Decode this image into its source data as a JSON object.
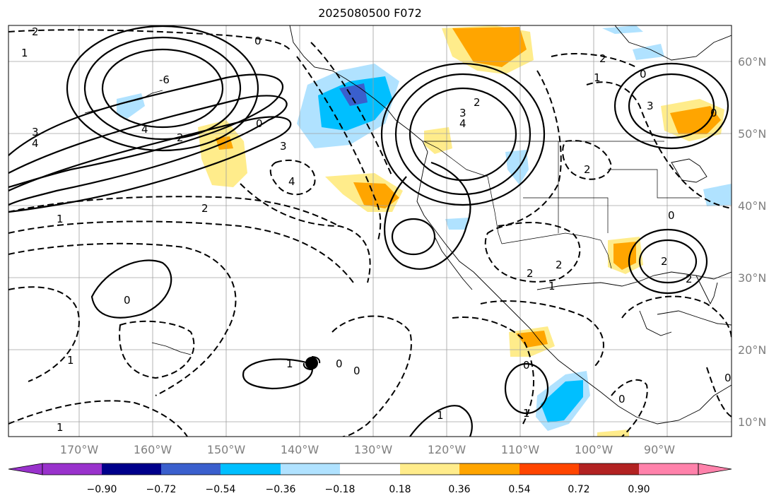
{
  "title": "2025080500 F072",
  "map": {
    "projection": "plate-carree",
    "lon_range": [
      -180,
      -82
    ],
    "lat_range": [
      8,
      65
    ],
    "lon_ticks": [
      "170°W",
      "160°W",
      "150°W",
      "140°W",
      "130°W",
      "120°W",
      "110°W",
      "100°W",
      "90°W"
    ],
    "lat_ticks": [
      "60°N",
      "50°N",
      "40°N",
      "30°N",
      "20°N",
      "10°N"
    ],
    "grid": true,
    "contour_labels": [
      "0",
      "2",
      "2",
      "1",
      "-6",
      "4",
      "3",
      "4",
      "2",
      "0",
      "3",
      "4",
      "2",
      "1",
      "2",
      "3",
      "4",
      "0",
      "3",
      "2",
      "2",
      "2",
      "1",
      "2",
      "2",
      "0",
      "1",
      "1",
      "0",
      "0",
      "0",
      "1",
      "1",
      "0",
      "1",
      "0",
      "0",
      "1",
      "0"
    ]
  },
  "colorbar": {
    "colors": [
      "#9932cc",
      "#00008b",
      "#3a5fcd",
      "#00bfff",
      "#b0e2ff",
      "#ffffff",
      "#ffec8b",
      "#ffa500",
      "#ff4500",
      "#b22222",
      "#ff82ab"
    ],
    "labels": [
      "−0.90",
      "−0.72",
      "−0.54",
      "−0.36",
      "−0.18",
      "0.18",
      "0.36",
      "0.54",
      "0.72",
      "0.90"
    ]
  },
  "typhoon_marker": "hurricane-symbol"
}
